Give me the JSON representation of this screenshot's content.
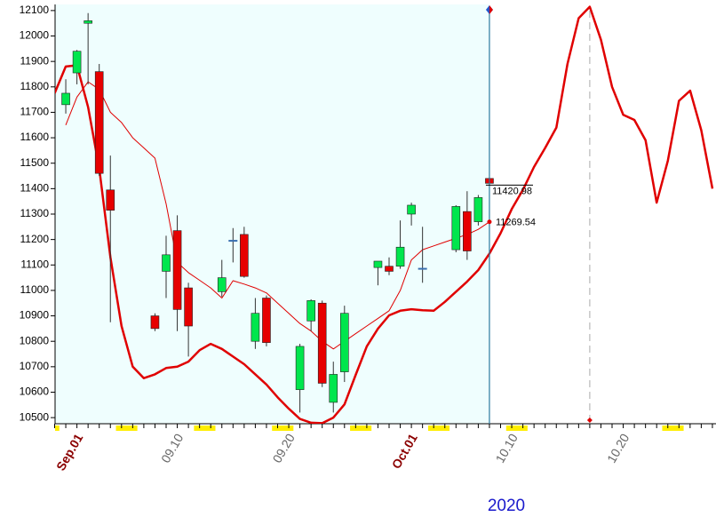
{
  "chart_data": {
    "type": "candlestick",
    "categories": [
      null,
      null,
      "Sep.01",
      null,
      null,
      null,
      null,
      null,
      null,
      null,
      null,
      "09.10",
      null,
      null,
      null,
      null,
      null,
      null,
      null,
      null,
      null,
      "09.20",
      null,
      null,
      null,
      null,
      null,
      null,
      null,
      null,
      null,
      null,
      "Oct.01",
      null,
      null,
      null,
      null,
      null,
      null,
      null,
      null,
      "10.10",
      null,
      null,
      null,
      null,
      null,
      null,
      null,
      null,
      null,
      "10.20",
      null,
      null,
      null,
      null,
      null,
      null,
      null,
      null
    ],
    "open": [
      null,
      11730,
      11855,
      12050,
      11860,
      11395,
      null,
      null,
      null,
      10900,
      11075,
      11235,
      11010,
      null,
      null,
      10995,
      11195,
      11220,
      10800,
      10970,
      null,
      null,
      10610,
      10880,
      10950,
      10560,
      10680,
      null,
      null,
      11090,
      11095,
      11095,
      11300,
      11085,
      null,
      null,
      11160,
      11310,
      11270,
      11440,
      null,
      null,
      null,
      null,
      null,
      null,
      null,
      null,
      null,
      null,
      null,
      null,
      null,
      null,
      null,
      null,
      null,
      null,
      null,
      null
    ],
    "high": [
      null,
      11830,
      11945,
      12090,
      11890,
      11530,
      null,
      null,
      null,
      10910,
      11215,
      11295,
      11030,
      null,
      null,
      11120,
      11245,
      11250,
      10970,
      10980,
      null,
      null,
      10790,
      10965,
      10960,
      10720,
      10940,
      null,
      null,
      11115,
      11130,
      11275,
      11345,
      11250,
      null,
      null,
      11335,
      11390,
      11375,
      11445,
      null,
      null,
      null,
      null,
      null,
      null,
      null,
      null,
      null,
      null,
      null,
      null,
      null,
      null,
      null,
      null,
      null,
      null,
      null,
      null
    ],
    "low": [
      null,
      11695,
      11810,
      11810,
      11450,
      10875,
      null,
      null,
      null,
      10840,
      10970,
      10840,
      10740,
      null,
      null,
      10975,
      11110,
      11050,
      10770,
      10780,
      null,
      null,
      10520,
      10840,
      10620,
      10520,
      10640,
      null,
      null,
      11020,
      11060,
      11085,
      11255,
      11030,
      null,
      null,
      11150,
      11120,
      11255,
      11418,
      null,
      null,
      null,
      null,
      null,
      null,
      null,
      null,
      null,
      null,
      null,
      null,
      null,
      null,
      null,
      null,
      null,
      null,
      null,
      null
    ],
    "close": [
      null,
      11775,
      11940,
      12060,
      11460,
      11315,
      null,
      null,
      null,
      10850,
      11140,
      10925,
      10860,
      null,
      null,
      11050,
      11195,
      11055,
      10910,
      10795,
      null,
      null,
      10780,
      10960,
      10635,
      10670,
      10910,
      null,
      null,
      11115,
      11075,
      11170,
      11335,
      11085,
      null,
      null,
      11330,
      11155,
      11365,
      11420.98,
      null,
      null,
      null,
      null,
      null,
      null,
      null,
      null,
      null,
      null,
      null,
      null,
      null,
      null,
      null,
      null,
      null,
      null,
      null,
      null
    ],
    "up_color": "#00e64d",
    "down_color": "#e60000",
    "doji_color": "#3a6fb0",
    "lines": [
      {
        "color": "#e00000",
        "width": 1,
        "values": [
          null,
          11650,
          11760,
          11820,
          11790,
          11700,
          11660,
          11600,
          11560,
          11520,
          11340,
          11110,
          11070,
          11040,
          11010,
          10970,
          11038,
          11025,
          11010,
          10990,
          10950,
          10910,
          10870,
          10840,
          10800,
          10770,
          10800,
          10830,
          10860,
          10890,
          10920,
          11000,
          11120,
          11160,
          11175,
          11190,
          11205,
          11220,
          11240,
          11269.54,
          null,
          null,
          null,
          null,
          null,
          null,
          null,
          null,
          null,
          null,
          null,
          null,
          null,
          null,
          null,
          null,
          null,
          null,
          null,
          null
        ]
      },
      {
        "color": "#e00000",
        "width": 2.5,
        "values": [
          11775,
          11880,
          11885,
          11720,
          11480,
          11130,
          10860,
          10700,
          10655,
          10670,
          10695,
          10700,
          10720,
          10765,
          10790,
          10770,
          10740,
          10710,
          10670,
          10630,
          10580,
          10535,
          10495,
          10480,
          10478,
          10500,
          10552,
          10668,
          10780,
          10850,
          10902,
          10920,
          10926,
          10922,
          10920,
          10955,
          10995,
          11035,
          11080,
          11145,
          11225,
          11320,
          11395,
          11485,
          11560,
          11640,
          11890,
          12070,
          12115,
          11985,
          11800,
          11690,
          11670,
          11590,
          11345,
          11510,
          11745,
          11785,
          11630,
          11400
        ]
      }
    ],
    "ylim": [
      10476,
      12124
    ],
    "yticks": [
      10500,
      10600,
      10700,
      10800,
      10900,
      11000,
      11100,
      11200,
      11300,
      11400,
      11500,
      11600,
      11700,
      11800,
      11900,
      12000,
      12100
    ],
    "year_label": "2020"
  }
}
